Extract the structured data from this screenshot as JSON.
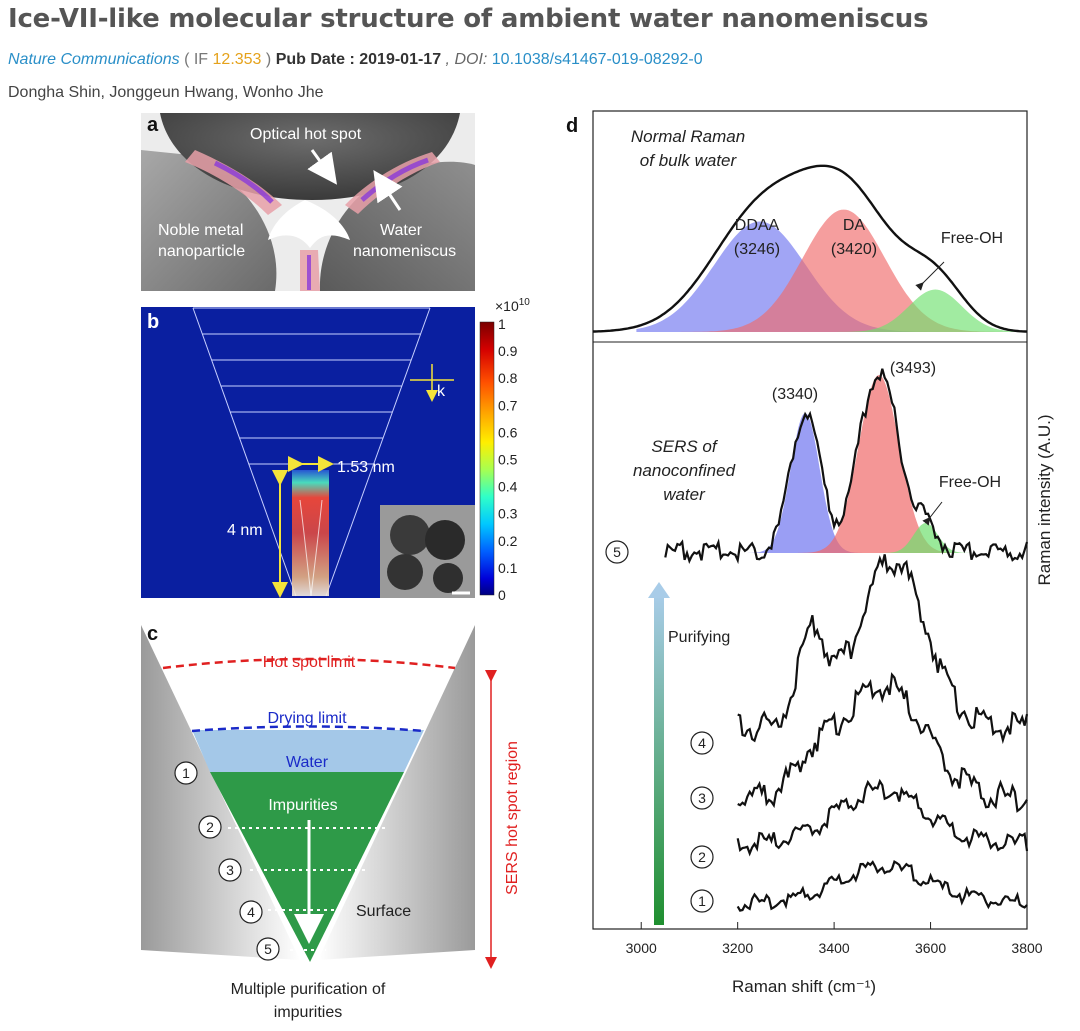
{
  "article": {
    "title": "Ice-VII-like molecular structure of ambient water nanomeniscus",
    "journal": "Nature Communications",
    "if_open": "( IF ",
    "if_value": "12.353",
    "if_close": " )",
    "pub_date_label": "Pub Date : 2019-01-17",
    "doi_label": ", DOI: ",
    "doi_value": "10.1038/s41467-019-08292-0",
    "authors": "Dongha Shin, Jonggeun Hwang, Wonho Jhe"
  },
  "figure": {
    "panel_a": {
      "letter": "a",
      "hot_spot": "Optical hot spot",
      "noble_1": "Noble metal",
      "noble_2": "nanoparticle",
      "water_1": "Water",
      "water_2": "nanomeniscus"
    },
    "panel_b": {
      "letter": "b",
      "scale_exp": "×10",
      "scale_pow": "10",
      "colorbar_ticks": [
        "1",
        "0.9",
        "0.8",
        "0.7",
        "0.6",
        "0.5",
        "0.4",
        "0.3",
        "0.2",
        "0.1",
        "0"
      ],
      "width_label": "1.53 nm",
      "height_label": "4 nm",
      "k_label": "k"
    },
    "panel_c": {
      "letter": "c",
      "hot_spot_limit": "Hot spot limit",
      "drying_limit": "Drying limit",
      "water": "Water",
      "impurities": "Impurities",
      "surface": "Surface",
      "steps": [
        "1",
        "2",
        "3",
        "4",
        "5"
      ],
      "caption_1": "Multiple purification of",
      "caption_2": "impurities",
      "side_label": "SERS hot spot region"
    },
    "panel_d": {
      "letter": "d",
      "bulk_1": "Normal Raman",
      "bulk_2": "of bulk water",
      "ddaa_1": "DDAA",
      "ddaa_2": "(3246)",
      "da_1": "DA",
      "da_2": "(3420)",
      "free_oh_top": "Free-OH",
      "peak_a": "(3340)",
      "peak_b": "(3493)",
      "sers_1": "SERS of",
      "sers_2": "nanoconfined",
      "sers_3": "water",
      "free_oh_mid": "Free-OH",
      "purifying": "Purifying",
      "step_labels": [
        "5",
        "4",
        "3",
        "2",
        "1"
      ],
      "ylabel": "Raman intensity (A.U.)",
      "xlabel": "Raman shift (cm⁻¹)"
    }
  },
  "chart_data": {
    "type": "line",
    "title": "",
    "xlabel": "Raman shift (cm⁻¹)",
    "ylabel": "Raman intensity (A.U.)",
    "xlim": [
      2900,
      3800
    ],
    "x_ticks": [
      "3000",
      "3200",
      "3400",
      "3600",
      "3800"
    ],
    "series": [
      {
        "name": "Normal Raman of bulk water",
        "x": [
          2900,
          3000,
          3100,
          3200,
          3246,
          3300,
          3350,
          3400,
          3420,
          3450,
          3500,
          3550,
          3600,
          3650,
          3700,
          3800
        ],
        "values": [
          0.02,
          0.06,
          0.22,
          0.55,
          0.68,
          0.78,
          0.85,
          0.9,
          0.92,
          0.9,
          0.82,
          0.64,
          0.44,
          0.24,
          0.1,
          0.04
        ]
      },
      {
        "name": "DDAA component",
        "center": 3246,
        "relative_height": 0.65
      },
      {
        "name": "DA component",
        "center": 3420,
        "relative_height": 0.72
      },
      {
        "name": "Free-OH component (bulk)",
        "center": 3610,
        "relative_height": 0.25
      },
      {
        "name": "SERS of nanoconfined water (5)",
        "x": [
          3050,
          3250,
          3300,
          3340,
          3380,
          3420,
          3460,
          3493,
          3520,
          3560,
          3600,
          3650,
          3800
        ],
        "values": [
          0.02,
          0.03,
          0.2,
          0.72,
          0.2,
          0.08,
          0.5,
          0.9,
          0.6,
          0.25,
          0.12,
          0.04,
          0.02
        ]
      },
      {
        "name": "Trace 4",
        "x": [
          3200,
          3300,
          3350,
          3400,
          3450,
          3520,
          3600,
          3700,
          3800
        ],
        "values": [
          0.08,
          0.25,
          0.55,
          0.3,
          0.6,
          0.92,
          0.45,
          0.12,
          0.06
        ]
      },
      {
        "name": "Trace 3",
        "x": [
          3200,
          3300,
          3400,
          3500,
          3600,
          3700,
          3800
        ],
        "values": [
          0.05,
          0.15,
          0.35,
          0.7,
          0.3,
          0.1,
          0.06
        ]
      },
      {
        "name": "Trace 2",
        "x": [
          3200,
          3300,
          3400,
          3500,
          3600,
          3700,
          3800
        ],
        "values": [
          0.04,
          0.08,
          0.18,
          0.42,
          0.2,
          0.06,
          0.04
        ]
      },
      {
        "name": "Trace 1",
        "x": [
          3200,
          3300,
          3400,
          3500,
          3600,
          3700,
          3800
        ],
        "values": [
          0.02,
          0.06,
          0.14,
          0.35,
          0.18,
          0.05,
          0.03
        ]
      }
    ],
    "annotations": [
      "DDAA (3246)",
      "DA (3420)",
      "Free-OH",
      "(3340)",
      "(3493)"
    ]
  }
}
